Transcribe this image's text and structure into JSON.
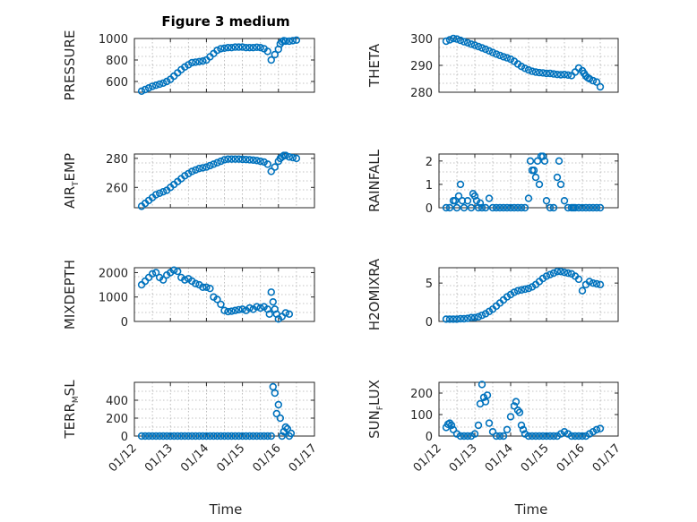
{
  "figure": {
    "title": "Figure 3 medium",
    "background": "#ffffff",
    "marker_color": "#0072BD",
    "axis_color": "#262626"
  },
  "chart_data": [
    {
      "type": "scatter",
      "ylabel": "PRESSURE",
      "ylim": [
        500,
        1000
      ],
      "yticks": [
        600,
        800,
        1000
      ],
      "xlim": [
        0,
        5
      ],
      "grid": true,
      "x": [
        0.2,
        0.3,
        0.4,
        0.5,
        0.6,
        0.7,
        0.8,
        0.9,
        1.0,
        1.1,
        1.2,
        1.3,
        1.4,
        1.5,
        1.6,
        1.7,
        1.8,
        1.9,
        2.0,
        2.1,
        2.2,
        2.3,
        2.4,
        2.5,
        2.6,
        2.7,
        2.8,
        2.9,
        3.0,
        3.1,
        3.2,
        3.3,
        3.4,
        3.5,
        3.6,
        3.7,
        3.8,
        3.9,
        4.0,
        4.05,
        4.1,
        4.15,
        4.2,
        4.3,
        4.4,
        4.5
      ],
      "values": [
        510,
        525,
        540,
        555,
        565,
        575,
        585,
        600,
        620,
        650,
        680,
        710,
        735,
        755,
        775,
        780,
        785,
        790,
        800,
        830,
        860,
        890,
        905,
        910,
        915,
        915,
        920,
        920,
        920,
        915,
        915,
        915,
        918,
        915,
        905,
        880,
        800,
        850,
        900,
        950,
        970,
        980,
        975,
        975,
        980,
        985
      ]
    },
    {
      "type": "scatter",
      "ylabel": "THETA",
      "ylim": [
        280,
        300
      ],
      "yticks": [
        280,
        290,
        300
      ],
      "xlim": [
        0,
        5
      ],
      "grid": true,
      "x": [
        0.2,
        0.3,
        0.4,
        0.5,
        0.6,
        0.7,
        0.8,
        0.9,
        1.0,
        1.1,
        1.2,
        1.3,
        1.4,
        1.5,
        1.6,
        1.7,
        1.8,
        1.9,
        2.0,
        2.1,
        2.2,
        2.3,
        2.4,
        2.5,
        2.6,
        2.7,
        2.8,
        2.9,
        3.0,
        3.1,
        3.2,
        3.3,
        3.4,
        3.5,
        3.6,
        3.7,
        3.8,
        3.9,
        4.0,
        4.05,
        4.1,
        4.15,
        4.2,
        4.3,
        4.4,
        4.5
      ],
      "values": [
        299,
        299.5,
        300,
        299.8,
        299.3,
        298.8,
        298.4,
        297.9,
        297.5,
        297.0,
        296.5,
        296.0,
        295.4,
        294.8,
        294.2,
        293.7,
        293.2,
        292.8,
        292.3,
        291.5,
        290.5,
        289.6,
        288.9,
        288.3,
        287.8,
        287.5,
        287.3,
        287.2,
        287.0,
        287.0,
        286.8,
        286.6,
        286.5,
        286.6,
        286.4,
        286.2,
        287.5,
        289.0,
        288.0,
        287.0,
        286.0,
        285.4,
        285.0,
        284.3,
        283.8,
        282.0
      ]
    },
    {
      "type": "scatter",
      "ylabel": "AIR",
      "ylabel_sub": "T",
      "ylabel_suffix": "EMP",
      "ylim": [
        246,
        283
      ],
      "yticks": [
        260,
        280
      ],
      "xlim": [
        0,
        5
      ],
      "grid": true,
      "x": [
        0.2,
        0.3,
        0.4,
        0.5,
        0.6,
        0.7,
        0.8,
        0.9,
        1.0,
        1.1,
        1.2,
        1.3,
        1.4,
        1.5,
        1.6,
        1.7,
        1.8,
        1.9,
        2.0,
        2.1,
        2.2,
        2.3,
        2.4,
        2.5,
        2.6,
        2.7,
        2.8,
        2.9,
        3.0,
        3.1,
        3.2,
        3.3,
        3.4,
        3.5,
        3.6,
        3.7,
        3.8,
        3.9,
        4.0,
        4.05,
        4.1,
        4.15,
        4.2,
        4.3,
        4.4,
        4.5
      ],
      "values": [
        247,
        249,
        251,
        253,
        255,
        256,
        257,
        258,
        260,
        262,
        264,
        266,
        268,
        269.5,
        271,
        272,
        273,
        273.5,
        274,
        275,
        276,
        277,
        278,
        279,
        279.5,
        279.5,
        279.5,
        279.5,
        279.3,
        279.2,
        279.0,
        278.8,
        278.5,
        278.0,
        277.5,
        276.0,
        271,
        274,
        278,
        280,
        281,
        282,
        282,
        281,
        280.5,
        280
      ]
    },
    {
      "type": "scatter",
      "ylabel": "RAINFALL",
      "ylim": [
        0,
        2.3
      ],
      "yticks": [
        0,
        1,
        2
      ],
      "xlim": [
        0,
        5
      ],
      "grid": true,
      "x": [
        0.2,
        0.3,
        0.4,
        0.45,
        0.5,
        0.55,
        0.6,
        0.65,
        0.7,
        0.8,
        0.9,
        0.95,
        1.0,
        1.05,
        1.1,
        1.15,
        1.2,
        1.3,
        1.4,
        1.5,
        1.6,
        1.7,
        1.8,
        1.9,
        2.0,
        2.1,
        2.2,
        2.3,
        2.4,
        2.5,
        2.55,
        2.6,
        2.65,
        2.7,
        2.75,
        2.8,
        2.85,
        2.9,
        2.95,
        3.0,
        3.1,
        3.2,
        3.3,
        3.35,
        3.4,
        3.5,
        3.6,
        3.7,
        3.75,
        3.8,
        3.9,
        4.0,
        4.1,
        4.2,
        4.3,
        4.4,
        4.5
      ],
      "values": [
        0,
        0,
        0.3,
        0.3,
        0,
        0.5,
        1.0,
        0.3,
        0,
        0.3,
        0,
        0.6,
        0.5,
        0.3,
        0,
        0.2,
        0,
        0,
        0.4,
        0,
        0,
        0,
        0,
        0,
        0,
        0,
        0,
        0,
        0,
        0.4,
        2.0,
        1.6,
        1.6,
        1.3,
        2.0,
        1.0,
        2.2,
        2.2,
        2.0,
        0.3,
        0,
        0,
        1.3,
        2.0,
        1.0,
        0.3,
        0,
        0,
        0,
        0,
        0,
        0,
        0,
        0,
        0,
        0,
        0
      ]
    },
    {
      "type": "scatter",
      "ylabel": "MIXDEPTH",
      "ylim": [
        0,
        2200
      ],
      "yticks": [
        0,
        1000,
        2000
      ],
      "xlim": [
        0,
        5
      ],
      "grid": true,
      "x": [
        0.2,
        0.3,
        0.4,
        0.5,
        0.6,
        0.7,
        0.8,
        0.9,
        1.0,
        1.1,
        1.2,
        1.3,
        1.4,
        1.5,
        1.6,
        1.7,
        1.8,
        1.9,
        2.0,
        2.1,
        2.2,
        2.3,
        2.4,
        2.5,
        2.6,
        2.7,
        2.8,
        2.9,
        3.0,
        3.1,
        3.2,
        3.3,
        3.4,
        3.5,
        3.6,
        3.7,
        3.75,
        3.8,
        3.85,
        3.9,
        3.95,
        4.0,
        4.1,
        4.2,
        4.3
      ],
      "values": [
        1500,
        1650,
        1800,
        1950,
        2000,
        1800,
        1700,
        1900,
        2000,
        2100,
        2050,
        1800,
        1700,
        1750,
        1650,
        1550,
        1500,
        1400,
        1400,
        1350,
        1000,
        900,
        700,
        450,
        400,
        420,
        450,
        480,
        500,
        450,
        550,
        500,
        600,
        550,
        600,
        500,
        300,
        1200,
        800,
        500,
        300,
        100,
        200,
        350,
        300
      ]
    },
    {
      "type": "scatter",
      "ylabel": "H2OMIXRA",
      "ylim": [
        0,
        7
      ],
      "yticks": [
        0,
        5
      ],
      "xlim": [
        0,
        5
      ],
      "grid": true,
      "x": [
        0.2,
        0.3,
        0.4,
        0.5,
        0.6,
        0.7,
        0.8,
        0.9,
        1.0,
        1.1,
        1.2,
        1.3,
        1.4,
        1.5,
        1.6,
        1.7,
        1.8,
        1.9,
        2.0,
        2.1,
        2.2,
        2.3,
        2.4,
        2.5,
        2.6,
        2.7,
        2.8,
        2.9,
        3.0,
        3.1,
        3.2,
        3.3,
        3.4,
        3.5,
        3.6,
        3.7,
        3.8,
        3.9,
        4.0,
        4.1,
        4.2,
        4.3,
        4.4,
        4.5
      ],
      "values": [
        0.3,
        0.3,
        0.3,
        0.3,
        0.35,
        0.35,
        0.4,
        0.5,
        0.5,
        0.6,
        0.8,
        1.0,
        1.3,
        1.6,
        2.0,
        2.4,
        2.8,
        3.2,
        3.5,
        3.8,
        4.0,
        4.1,
        4.2,
        4.3,
        4.5,
        4.8,
        5.2,
        5.6,
        5.9,
        6.1,
        6.3,
        6.5,
        6.5,
        6.4,
        6.3,
        6.2,
        5.9,
        5.5,
        4.0,
        4.8,
        5.2,
        5.0,
        4.9,
        4.8
      ]
    },
    {
      "type": "scatter",
      "ylabel": "TERR",
      "ylabel_sub": "M",
      "ylabel_suffix": "SL",
      "ylim": [
        0,
        600
      ],
      "yticks": [
        0,
        200,
        400
      ],
      "xlim": [
        0,
        5
      ],
      "grid": true,
      "x": [
        0.2,
        0.3,
        0.4,
        0.5,
        0.6,
        0.7,
        0.8,
        0.9,
        1.0,
        1.1,
        1.2,
        1.3,
        1.4,
        1.5,
        1.6,
        1.7,
        1.8,
        1.9,
        2.0,
        2.1,
        2.2,
        2.3,
        2.4,
        2.5,
        2.6,
        2.7,
        2.8,
        2.9,
        3.0,
        3.1,
        3.2,
        3.3,
        3.4,
        3.5,
        3.6,
        3.7,
        3.8,
        3.85,
        3.9,
        3.95,
        4.0,
        4.05,
        4.1,
        4.15,
        4.2,
        4.25,
        4.3,
        4.35
      ],
      "values": [
        0,
        0,
        0,
        0,
        0,
        0,
        0,
        0,
        0,
        0,
        0,
        0,
        0,
        0,
        0,
        0,
        0,
        0,
        0,
        0,
        0,
        0,
        0,
        0,
        0,
        0,
        0,
        0,
        0,
        0,
        0,
        0,
        0,
        0,
        0,
        0,
        0,
        550,
        480,
        250,
        350,
        200,
        0,
        50,
        100,
        80,
        0,
        30
      ]
    },
    {
      "type": "scatter",
      "ylabel": "SUN",
      "ylabel_sub": "F",
      "ylabel_suffix": "LUX",
      "ylim": [
        0,
        250
      ],
      "yticks": [
        0,
        100,
        200
      ],
      "xlim": [
        0,
        5
      ],
      "grid": true,
      "x": [
        0.2,
        0.25,
        0.3,
        0.35,
        0.4,
        0.5,
        0.6,
        0.7,
        0.8,
        0.9,
        1.0,
        1.1,
        1.15,
        1.2,
        1.25,
        1.3,
        1.35,
        1.4,
        1.5,
        1.6,
        1.7,
        1.8,
        1.9,
        2.0,
        2.1,
        2.15,
        2.2,
        2.25,
        2.3,
        2.35,
        2.4,
        2.5,
        2.6,
        2.7,
        2.8,
        2.9,
        3.0,
        3.1,
        3.2,
        3.3,
        3.4,
        3.5,
        3.6,
        3.7,
        3.8,
        3.9,
        4.0,
        4.1,
        4.2,
        4.3,
        4.4,
        4.5
      ],
      "values": [
        40,
        55,
        60,
        50,
        30,
        10,
        0,
        0,
        0,
        0,
        10,
        50,
        150,
        240,
        180,
        160,
        190,
        60,
        20,
        0,
        0,
        0,
        30,
        90,
        140,
        160,
        120,
        110,
        50,
        30,
        10,
        0,
        0,
        0,
        0,
        0,
        0,
        0,
        0,
        0,
        10,
        20,
        10,
        0,
        0,
        0,
        0,
        0,
        10,
        20,
        30,
        35
      ]
    }
  ],
  "x_axis": {
    "tick_labels": [
      "01/12",
      "01/13",
      "01/14",
      "01/15",
      "01/16",
      "01/17"
    ],
    "label": "Time"
  }
}
